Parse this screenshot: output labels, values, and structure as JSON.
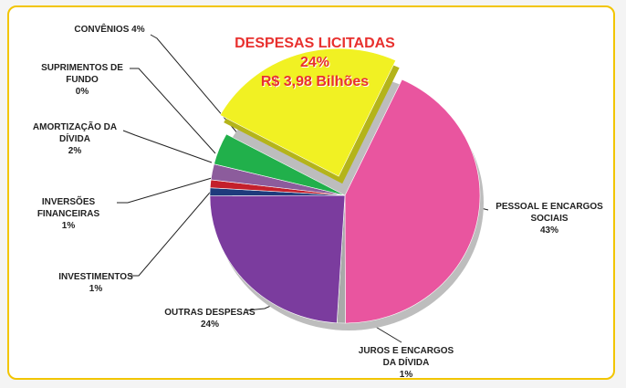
{
  "chart_data": {
    "type": "pie",
    "categories": [
      "PESSOAL E ENCARGOS SOCIAIS",
      "JUROS E ENCARGOS DA DÍVIDA",
      "OUTRAS DESPESAS",
      "INVESTIMENTOS",
      "INVERSÕES FINANCEIRAS",
      "AMORTIZAÇÃO DA DÍVIDA",
      "SUPRIMENTOS DE FUNDO",
      "CONVÊNIOS",
      "DESPESAS LICITADAS"
    ],
    "values": [
      43,
      1,
      24,
      1,
      1,
      2,
      0,
      4,
      24
    ],
    "value_labels": [
      "43%",
      "1%",
      "24%",
      "1%",
      "1%",
      "2%",
      "0%",
      "4%",
      "24%"
    ],
    "colors": [
      "#e9559f",
      "#a9a9a9",
      "#7b3c9e",
      "#1e3b7c",
      "#c4202b",
      "#8c5c9c",
      "#f2f2f2",
      "#21b04b",
      "#f1f123"
    ],
    "exploded": "DESPESAS LICITADAS",
    "annotations": [
      "R$ 3,98 Bilhões"
    ]
  }
}
